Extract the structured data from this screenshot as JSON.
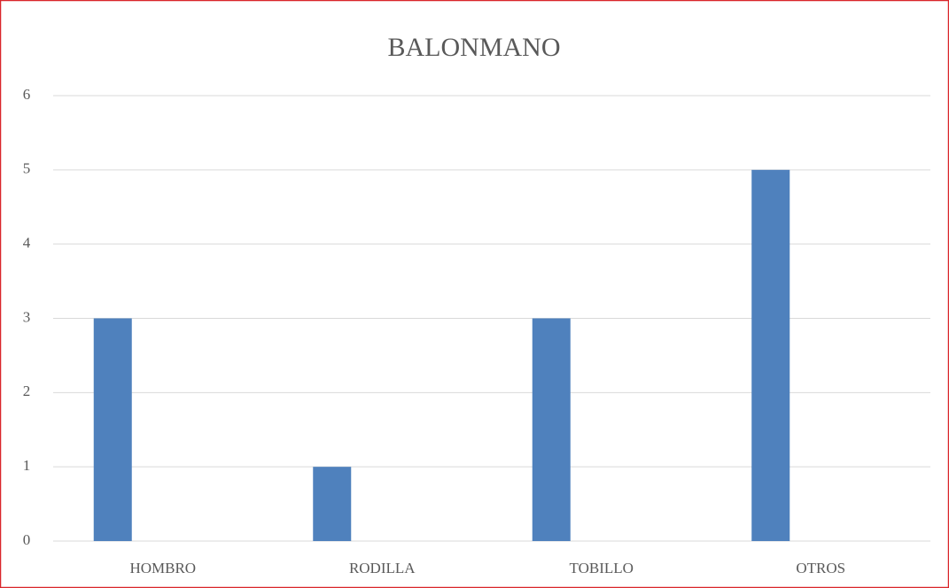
{
  "chart_data": {
    "type": "bar",
    "title": "BALONMANO",
    "categories": [
      "HOMBRO",
      "RODILLA",
      "TOBILLO",
      "OTROS"
    ],
    "values": [
      3,
      1,
      3,
      5
    ],
    "color": "#4f81bd",
    "ylim": [
      0,
      6
    ],
    "yticks": [
      0,
      1,
      2,
      3,
      4,
      5,
      6
    ],
    "grid": true
  }
}
